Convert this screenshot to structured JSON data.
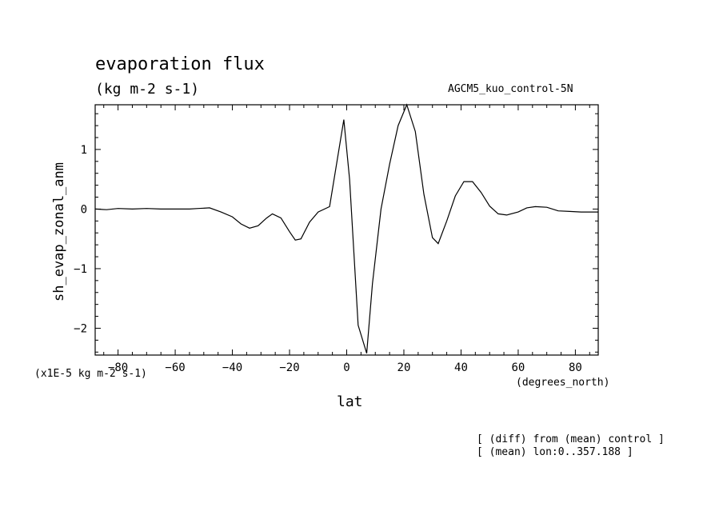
{
  "chart_data": {
    "type": "line",
    "title": "evaporation flux",
    "units": "(kg m-2 s-1)",
    "run_label": "AGCM5_kuo_control-5N",
    "ylabel": "sh_evap_zonal_anm",
    "xlabel": "lat",
    "scale_note": "(x1E-5 kg m-2 s-1)",
    "x_units": "(degrees_north)",
    "notes": [
      "[ (diff) from (mean) control ]",
      "[ (mean) lon:0..357.188 ]"
    ],
    "xlim": [
      -88,
      88
    ],
    "ylim": [
      -2.45,
      1.75
    ],
    "xticks": [
      -80,
      -60,
      -40,
      -20,
      0,
      20,
      40,
      60,
      80
    ],
    "xtick_labels": [
      "-80",
      "-60",
      "-40",
      "-20",
      "0",
      "20",
      "40",
      "60",
      "80"
    ],
    "yticks": [
      1,
      0,
      -1,
      -2
    ],
    "ytick_labels": [
      "1",
      "0",
      "-1",
      "-2"
    ],
    "grid": false,
    "series": [
      {
        "x": [
          -88,
          -84,
          -80,
          -75,
          -70,
          -65,
          -60,
          -55,
          -52,
          -48,
          -44,
          -40,
          -37,
          -34,
          -31,
          -28,
          -26,
          -23,
          -20,
          -18,
          -16,
          -13,
          -10,
          -6,
          -1,
          1,
          4,
          7,
          9,
          12,
          15,
          18,
          21,
          24,
          27,
          30,
          32,
          35,
          38,
          41,
          44,
          47,
          50,
          53,
          56,
          60,
          63,
          66,
          70,
          74,
          78,
          82,
          86,
          88
        ],
        "y": [
          0.0,
          -0.01,
          0.01,
          0.0,
          0.01,
          0.0,
          0.0,
          0.0,
          0.01,
          0.02,
          -0.05,
          -0.13,
          -0.25,
          -0.32,
          -0.28,
          -0.15,
          -0.08,
          -0.15,
          -0.38,
          -0.52,
          -0.5,
          -0.22,
          -0.05,
          0.04,
          1.5,
          0.5,
          -1.95,
          -2.42,
          -1.25,
          0.0,
          0.75,
          1.4,
          1.75,
          1.3,
          0.25,
          -0.48,
          -0.58,
          -0.2,
          0.22,
          0.46,
          0.46,
          0.28,
          0.05,
          -0.08,
          -0.1,
          -0.05,
          0.02,
          0.04,
          0.03,
          -0.03,
          -0.04,
          -0.05,
          -0.05,
          -0.05
        ]
      }
    ]
  }
}
